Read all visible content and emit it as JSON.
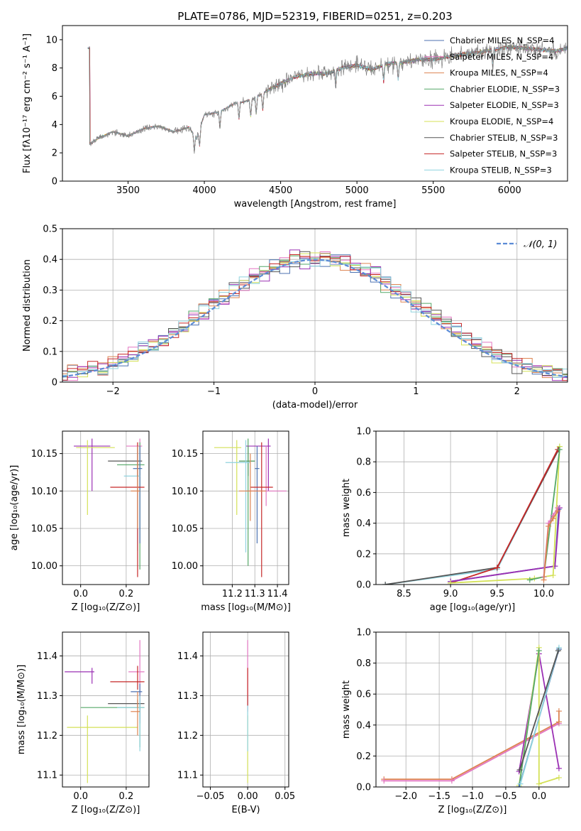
{
  "figure": {
    "title": "PLATE=0786, MJD=52319, FIBERID=0251, z=0.203"
  },
  "chart_data": [
    {
      "id": "spectrum",
      "type": "line",
      "xlabel": "wavelength [Angstrom, rest frame]",
      "ylabel": "Flux [fλ10⁻¹⁷ erg cm⁻² s⁻¹ A⁻¹]",
      "xlim": [
        3070,
        6380
      ],
      "ylim": [
        0,
        11
      ],
      "xticks": [
        3500,
        4000,
        4500,
        5000,
        5500,
        6000
      ],
      "yticks": [
        0,
        2,
        4,
        6,
        8,
        10
      ],
      "grid": false,
      "legend_position": "right",
      "continuum": {
        "x": [
          3250,
          3300,
          3400,
          3500,
          3600,
          3700,
          3800,
          3900,
          3950,
          4000,
          4100,
          4200,
          4300,
          4400,
          4500,
          4600,
          4700,
          4800,
          4900,
          5000,
          5100,
          5200,
          5300,
          5400,
          5500,
          5600,
          5700,
          5800,
          5900,
          6000,
          6100,
          6200,
          6300,
          6380
        ],
        "values": [
          2.6,
          3.0,
          3.5,
          3.2,
          3.7,
          3.9,
          3.5,
          3.8,
          3.0,
          4.7,
          4.9,
          5.5,
          5.7,
          6.3,
          6.9,
          7.4,
          7.6,
          7.6,
          8.0,
          8.2,
          7.9,
          8.3,
          8.4,
          8.6,
          8.6,
          8.8,
          9.0,
          9.1,
          9.3,
          9.5,
          9.4,
          9.3,
          9.2,
          9.4
        ]
      },
      "series": [
        {
          "name": "Chabrier MILES, N_SSP=4",
          "color": "#4c72b0"
        },
        {
          "name": "Salpeter MILES, N_SSP=4",
          "color": "#e377c2"
        },
        {
          "name": "Kroupa MILES, N_SSP=4",
          "color": "#dd8452"
        },
        {
          "name": "Chabrier ELODIE, N_SSP=3",
          "color": "#55a868"
        },
        {
          "name": "Salpeter ELODIE, N_SSP=3",
          "color": "#9b30b4"
        },
        {
          "name": "Kroupa ELODIE, N_SSP=4",
          "color": "#d4e157"
        },
        {
          "name": "Chabrier STELIB, N_SSP=3",
          "color": "#555555"
        },
        {
          "name": "Salpeter STELIB, N_SSP=3",
          "color": "#c62828"
        },
        {
          "name": "Kroupa STELIB, N_SSP=3",
          "color": "#8fd3de"
        }
      ]
    },
    {
      "id": "residuals",
      "type": "line",
      "xlabel": "(data-model)/error",
      "ylabel": "Normed distribution",
      "xlim": [
        -2.5,
        2.5
      ],
      "ylim": [
        0,
        0.5
      ],
      "xticks": [
        -2,
        -1,
        0,
        1,
        2
      ],
      "yticks": [
        0.0,
        0.1,
        0.2,
        0.3,
        0.4,
        0.5
      ],
      "grid": true,
      "legend_position": "top-right",
      "legend_label": "𝒩(0, 1)",
      "reference_color": "#5b8bd6",
      "bin_width": 0.1,
      "colors": [
        "#4c72b0",
        "#e377c2",
        "#dd8452",
        "#55a868",
        "#9b30b4",
        "#d4e157",
        "#555555",
        "#c62828",
        "#8fd3de"
      ]
    },
    {
      "id": "age-vs-Z",
      "type": "scatter",
      "xlabel": "Z [log₁₀(Z/Z⊙)]",
      "ylabel": "age  [log₁₀(age/yr)]",
      "xlim": [
        -0.08,
        0.3
      ],
      "ylim": [
        9.975,
        10.18
      ],
      "xticks": [
        0.0,
        0.2
      ],
      "yticks": [
        10.0,
        10.05,
        10.1,
        10.15
      ],
      "xticklabels": [
        "0.0",
        "0.2"
      ],
      "yticklabels": [
        "10.00",
        "10.05",
        "10.10",
        "10.15"
      ],
      "grid": true,
      "points": [
        {
          "x": 0.05,
          "y": 10.16,
          "xl": 0.08,
          "xh": 0.08,
          "yl": 0.06,
          "yh": 0.01,
          "color": "#9b30b4"
        },
        {
          "x": 0.03,
          "y": 10.158,
          "xl": 0.05,
          "xh": 0.12,
          "yl": 0.09,
          "yh": 0.01,
          "color": "#d4e157"
        },
        {
          "x": 0.26,
          "y": 10.16,
          "xl": 0.06,
          "xh": 0.01,
          "yl": 0.02,
          "yh": 0.01,
          "color": "#e377c2"
        },
        {
          "x": 0.25,
          "y": 10.14,
          "xl": 0.13,
          "xh": 0.02,
          "yl": 0.02,
          "yh": 0.02,
          "color": "#555555"
        },
        {
          "x": 0.26,
          "y": 10.135,
          "xl": 0.1,
          "xh": 0.02,
          "yl": 0.14,
          "yh": 0.03,
          "color": "#55a868"
        },
        {
          "x": 0.26,
          "y": 10.13,
          "xl": 0.03,
          "xh": 0.01,
          "yl": 0.1,
          "yh": 0.03,
          "color": "#4c72b0"
        },
        {
          "x": 0.25,
          "y": 10.12,
          "xl": 0.06,
          "xh": 0.01,
          "yl": 0.1,
          "yh": 0.04,
          "color": "#8fd3de"
        },
        {
          "x": 0.25,
          "y": 10.105,
          "xl": 0.12,
          "xh": 0.03,
          "yl": 0.12,
          "yh": 0.06,
          "color": "#c62828"
        },
        {
          "x": 0.25,
          "y": 10.1,
          "xl": 0.03,
          "xh": 0.01,
          "yl": 0.05,
          "yh": 0.06,
          "color": "#dd8452"
        }
      ]
    },
    {
      "id": "age-vs-mass",
      "type": "scatter",
      "xlabel": "mass [log₁₀(M/M⊙)]",
      "xlim": [
        11.07,
        11.45
      ],
      "ylim": [
        9.975,
        10.18
      ],
      "xticks": [
        11.2,
        11.3,
        11.4
      ],
      "yticks": [
        10.0,
        10.05,
        10.1,
        10.15
      ],
      "xticklabels": [
        "11.2",
        "11.3",
        "11.4"
      ],
      "yticklabels": [
        "10.00",
        "10.05",
        "10.10",
        "10.15"
      ],
      "grid": true,
      "points": [
        {
          "x": 11.36,
          "y": 10.16,
          "xl": 0.1,
          "xh": 0.01,
          "yl": 0.06,
          "yh": 0.01,
          "color": "#9b30b4"
        },
        {
          "x": 11.22,
          "y": 10.158,
          "xl": 0.1,
          "xh": 0.02,
          "yl": 0.09,
          "yh": 0.01,
          "color": "#d4e157"
        },
        {
          "x": 11.35,
          "y": 10.1,
          "xl": 0.09,
          "xh": 0.09,
          "yl": 0.02,
          "yh": 0.06,
          "color": "#e377c2"
        },
        {
          "x": 11.27,
          "y": 10.14,
          "xl": 0.04,
          "xh": 0.03,
          "yl": 0.02,
          "yh": 0.02,
          "color": "#555555"
        },
        {
          "x": 11.27,
          "y": 10.14,
          "xl": 0.04,
          "xh": 0.03,
          "yl": 0.14,
          "yh": 0.03,
          "color": "#55a868"
        },
        {
          "x": 11.31,
          "y": 10.13,
          "xl": 0.01,
          "xh": 0.01,
          "yl": 0.1,
          "yh": 0.03,
          "color": "#4c72b0"
        },
        {
          "x": 11.26,
          "y": 10.138,
          "xl": 0.09,
          "xh": 0.02,
          "yl": 0.12,
          "yh": 0.03,
          "color": "#8fd3de"
        },
        {
          "x": 11.33,
          "y": 10.105,
          "xl": 0.05,
          "xh": 0.05,
          "yl": 0.12,
          "yh": 0.06,
          "color": "#c62828"
        },
        {
          "x": 11.28,
          "y": 10.1,
          "xl": 0.05,
          "xh": 0.07,
          "yl": 0.04,
          "yh": 0.05,
          "color": "#dd8452"
        }
      ]
    },
    {
      "id": "weight-vs-age",
      "type": "line",
      "xlabel": "age  [log₁₀(age/yr)]",
      "ylabel": "mass weight",
      "xlim": [
        8.2,
        10.27
      ],
      "ylim": [
        0,
        1
      ],
      "xticks": [
        8.5,
        9.0,
        9.5,
        10.0
      ],
      "yticks": [
        0.0,
        0.2,
        0.4,
        0.6,
        0.8,
        1.0
      ],
      "xticklabels": [
        "8.5",
        "9.0",
        "9.5",
        "10.0"
      ],
      "yticklabels": [
        "0.0",
        "0.2",
        "0.4",
        "0.6",
        "0.8",
        "1.0"
      ],
      "grid": true,
      "series": [
        {
          "color": "#8fd3de",
          "x": [
            8.3,
            9.5,
            10.17
          ],
          "y": [
            0.0,
            0.1,
            0.9
          ]
        },
        {
          "color": "#555555",
          "x": [
            8.3,
            9.5,
            10.16
          ],
          "y": [
            0.0,
            0.11,
            0.88
          ]
        },
        {
          "color": "#c62828",
          "x": [
            9.0,
            9.5,
            10.15
          ],
          "y": [
            0.01,
            0.11,
            0.88
          ]
        },
        {
          "color": "#4c72b0",
          "x": [
            9.0,
            10.12,
            10.16
          ],
          "y": [
            0.02,
            0.12,
            0.49
          ]
        },
        {
          "color": "#9b30b4",
          "x": [
            9.0,
            10.12,
            10.17
          ],
          "y": [
            0.02,
            0.12,
            0.5
          ]
        },
        {
          "color": "#d4e157",
          "x": [
            9.0,
            9.9,
            10.1,
            10.17
          ],
          "y": [
            0.01,
            0.04,
            0.06,
            0.9
          ]
        },
        {
          "color": "#55a868",
          "x": [
            9.85,
            10.0,
            10.17
          ],
          "y": [
            0.03,
            0.05,
            0.88
          ]
        },
        {
          "color": "#e377c2",
          "x": [
            10.0,
            10.05,
            10.1,
            10.15
          ],
          "y": [
            0.05,
            0.4,
            0.45,
            0.5
          ]
        },
        {
          "color": "#dd8452",
          "x": [
            10.0,
            10.05,
            10.1,
            10.15
          ],
          "y": [
            0.03,
            0.38,
            0.43,
            0.48
          ]
        }
      ]
    },
    {
      "id": "mass-vs-Z",
      "type": "scatter",
      "xlabel": "Z [log₁₀(Z/Z⊙)]",
      "ylabel": "mass [log₁₀(M/M⊙)]",
      "xlim": [
        -0.08,
        0.3
      ],
      "ylim": [
        11.07,
        11.46
      ],
      "xticks": [
        0.0,
        0.2
      ],
      "yticks": [
        11.1,
        11.2,
        11.3,
        11.4
      ],
      "xticklabels": [
        "0.0",
        "0.2"
      ],
      "yticklabels": [
        "11.1",
        "11.2",
        "11.3",
        "11.4"
      ],
      "grid": true,
      "points": [
        {
          "x": 0.05,
          "y": 11.36,
          "xl": 0.12,
          "xh": 0.01,
          "yl": 0.03,
          "yh": 0.01,
          "color": "#9b30b4"
        },
        {
          "x": 0.03,
          "y": 11.22,
          "xl": 0.09,
          "xh": 0.22,
          "yl": 0.14,
          "yh": 0.03,
          "color": "#d4e157"
        },
        {
          "x": 0.26,
          "y": 11.36,
          "xl": 0.05,
          "xh": 0.02,
          "yl": 0.12,
          "yh": 0.08,
          "color": "#e377c2"
        },
        {
          "x": 0.25,
          "y": 11.28,
          "xl": 0.13,
          "xh": 0.03,
          "yl": 0.01,
          "yh": 0.01,
          "color": "#555555"
        },
        {
          "x": 0.26,
          "y": 11.27,
          "xl": 0.26,
          "xh": 0.02,
          "yl": 0.1,
          "yh": 0.01,
          "color": "#55a868"
        },
        {
          "x": 0.26,
          "y": 11.31,
          "xl": 0.04,
          "xh": 0.01,
          "yl": 0.08,
          "yh": 0.02,
          "color": "#4c72b0"
        },
        {
          "x": 0.26,
          "y": 11.27,
          "xl": 0.1,
          "xh": 0.02,
          "yl": 0.11,
          "yh": 0.03,
          "color": "#8fd3de"
        },
        {
          "x": 0.25,
          "y": 11.335,
          "xl": 0.12,
          "xh": 0.03,
          "yl": 0.02,
          "yh": 0.04,
          "color": "#c62828"
        },
        {
          "x": 0.25,
          "y": 11.26,
          "xl": 0.03,
          "xh": 0.01,
          "yl": 0.06,
          "yh": 0.05,
          "color": "#dd8452"
        }
      ]
    },
    {
      "id": "mass-vs-ebv",
      "type": "scatter",
      "xlabel": "E(B-V)",
      "xlim": [
        -0.06,
        0.055
      ],
      "ylim": [
        11.07,
        11.46
      ],
      "xticks": [
        -0.05,
        0.0,
        0.05
      ],
      "yticks": [
        11.1,
        11.2,
        11.3,
        11.4
      ],
      "xticklabels": [
        "−0.05",
        "0.00",
        "0.05"
      ],
      "yticklabels": [
        "11.1",
        "11.2",
        "11.3",
        "11.4"
      ],
      "grid": true,
      "points": [
        {
          "x": 0.0,
          "y": 11.36,
          "xl": 0,
          "xh": 0,
          "yl": 0.1,
          "yh": 0.08,
          "color": "#e377c2"
        },
        {
          "x": 0.0,
          "y": 11.22,
          "xl": 0,
          "xh": 0,
          "yl": 0.14,
          "yh": 0.03,
          "color": "#d4e157"
        },
        {
          "x": 0.0,
          "y": 11.27,
          "xl": 0,
          "xh": 0,
          "yl": 0.11,
          "yh": 0.03,
          "color": "#8fd3de"
        },
        {
          "x": 0.0,
          "y": 11.335,
          "xl": 0,
          "xh": 0,
          "yl": 0.06,
          "yh": 0.035,
          "color": "#c62828"
        }
      ]
    },
    {
      "id": "weight-vs-Z",
      "type": "line",
      "xlabel": "Z [log₁₀(Z/Z⊙)]",
      "ylabel": "mass weight",
      "xlim": [
        -2.45,
        0.45
      ],
      "ylim": [
        0,
        1
      ],
      "xticks": [
        -2.0,
        -1.5,
        -1.0,
        -0.5,
        0.0
      ],
      "yticks": [
        0.0,
        0.2,
        0.4,
        0.6,
        0.8,
        1.0
      ],
      "xticklabels": [
        "−2.0",
        "−1.5",
        "−1.0",
        "−0.5",
        "0.0"
      ],
      "yticklabels": [
        "0.0",
        "0.2",
        "0.4",
        "0.6",
        "0.8",
        "1.0"
      ],
      "grid": true,
      "series": [
        {
          "color": "#dd8452",
          "x": [
            -2.33,
            -1.31,
            0.3
          ],
          "y": [
            0.05,
            0.05,
            0.42
          ]
        },
        {
          "color": "#e377c2",
          "x": [
            -2.33,
            -1.31,
            0.3
          ],
          "y": [
            0.04,
            0.04,
            0.41
          ]
        },
        {
          "color": "#dd8452",
          "x": [
            0.3,
            0.3
          ],
          "y": [
            0.42,
            0.49
          ]
        },
        {
          "color": "#9b30b4",
          "x": [
            -0.3,
            0.0,
            0.3
          ],
          "y": [
            0.1,
            0.86,
            0.12
          ]
        },
        {
          "color": "#d4e157",
          "x": [
            -0.3,
            0.0,
            0.0,
            0.3
          ],
          "y": [
            0.01,
            0.9,
            0.02,
            0.06
          ]
        },
        {
          "color": "#55a868",
          "x": [
            -0.3,
            0.0
          ],
          "y": [
            0.0,
            0.88
          ]
        },
        {
          "color": "#4c72b0",
          "x": [
            -0.3,
            0.3
          ],
          "y": [
            0.0,
            0.89
          ]
        },
        {
          "color": "#8fd3de",
          "x": [
            -0.28,
            0.3
          ],
          "y": [
            0.02,
            0.9
          ]
        },
        {
          "color": "#555555",
          "x": [
            -0.29,
            0.29
          ],
          "y": [
            0.11,
            0.88
          ]
        }
      ]
    }
  ]
}
